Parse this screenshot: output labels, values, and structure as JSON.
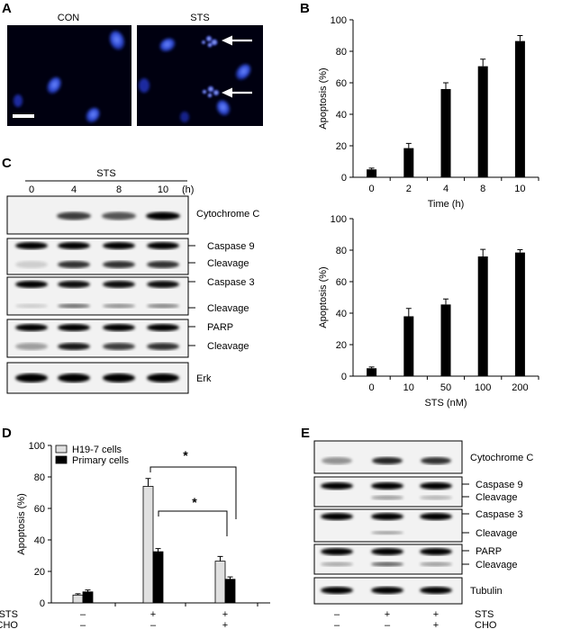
{
  "panels": {
    "A": {
      "letter": "A",
      "images": [
        {
          "label": "CON"
        },
        {
          "label": "STS"
        }
      ]
    },
    "B": {
      "letter": "B"
    },
    "C": {
      "letter": "C",
      "treatment": "STS",
      "time_labels": [
        "0",
        "4",
        "8",
        "10"
      ],
      "time_unit": "(h)",
      "blot_labels": [
        "Cytochrome C",
        "Caspase 9",
        "Cleavage",
        "Caspase 3",
        "Cleavage",
        "PARP",
        "Cleavage",
        "Erk"
      ]
    },
    "D": {
      "letter": "D",
      "significance": [
        "*",
        "*"
      ]
    },
    "E": {
      "letter": "E",
      "blot_labels": [
        "Cytochrome C",
        "Caspase 9",
        "Cleavage",
        "Caspase 3",
        "Cleavage",
        "PARP",
        "Cleavage",
        "Tubulin"
      ],
      "conditions": {
        "rows": [
          "STS",
          "CHO"
        ],
        "values": [
          [
            "–",
            "+",
            "+"
          ],
          [
            "–",
            "–",
            "+"
          ]
        ]
      }
    }
  },
  "chart_data": [
    {
      "id": "B-top",
      "type": "bar",
      "categories": [
        "0",
        "2",
        "4",
        "8",
        "10"
      ],
      "values": [
        5,
        18.5,
        56,
        70.5,
        86.5
      ],
      "errors": [
        0.8,
        3,
        4,
        4.5,
        3.5
      ],
      "xlabel": "Time (h)",
      "ylabel": "Apoptosis (%)",
      "ylim": [
        0,
        100
      ],
      "yticks": [
        "0",
        "20",
        "40",
        "60",
        "80",
        "100"
      ],
      "bar_color": "#000000"
    },
    {
      "id": "B-bottom",
      "type": "bar",
      "categories": [
        "0",
        "10",
        "50",
        "100",
        "200"
      ],
      "values": [
        5,
        38,
        45.5,
        76,
        78.5
      ],
      "errors": [
        0.8,
        5,
        3.5,
        4.5,
        1.8
      ],
      "xlabel": "STS (nM)",
      "ylabel": "Apoptosis (%)",
      "ylim": [
        0,
        100
      ],
      "yticks": [
        "0",
        "20",
        "40",
        "60",
        "80",
        "100"
      ],
      "bar_color": "#000000"
    },
    {
      "id": "D",
      "type": "bar",
      "groups": [
        [
          "–",
          "–"
        ],
        [
          "+",
          "–"
        ],
        [
          "+",
          "+"
        ]
      ],
      "group_row_labels": [
        "STS",
        "CHO"
      ],
      "series": [
        {
          "name": "H19-7 cells",
          "values": [
            5,
            74,
            26.5
          ],
          "errors": [
            0.8,
            5,
            3
          ],
          "color": "#e0e0e0"
        },
        {
          "name": "Primary cells",
          "values": [
            7,
            32.5,
            15
          ],
          "errors": [
            1.2,
            2,
            1.5
          ],
          "color": "#000000"
        }
      ],
      "ylabel": "Apoptosis (%)",
      "ylim": [
        0,
        100
      ],
      "yticks": [
        "0",
        "20",
        "40",
        "60",
        "80",
        "100"
      ],
      "legend": "top-left"
    }
  ]
}
